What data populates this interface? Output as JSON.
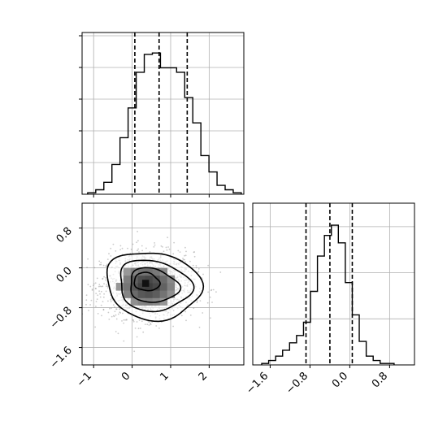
{
  "chart_data": [
    {
      "type": "histogram",
      "panel": "x-marginal",
      "x": [
        -1.05,
        -0.84,
        -0.63,
        -0.42,
        -0.21,
        0.0,
        0.21,
        0.42,
        0.63,
        0.84,
        1.05,
        1.26,
        1.47,
        1.68,
        1.89,
        2.1,
        2.31,
        2.52,
        2.73
      ],
      "values": [
        0.01,
        0.03,
        0.08,
        0.2,
        0.38,
        0.58,
        0.82,
        0.94,
        0.95,
        0.85,
        0.85,
        0.82,
        0.65,
        0.48,
        0.26,
        0.15,
        0.06,
        0.03,
        0.01
      ],
      "xlim": [
        -1.3,
        2.9
      ],
      "ylim": [
        0,
        1
      ],
      "quantiles": [
        0.07,
        0.7,
        1.43
      ],
      "grid": true
    },
    {
      "type": "scatter-density",
      "panel": "joint",
      "xticks": [
        -1,
        0,
        1,
        2
      ],
      "xtick_labels": [
        "−1",
        "0",
        "1",
        "2"
      ],
      "yticks": [
        -1.6,
        -0.8,
        0.0,
        0.8
      ],
      "ytick_labels": [
        "−1.6",
        "−0.8",
        "0.0",
        "0.8"
      ],
      "xlim": [
        -1.3,
        2.9
      ],
      "ylim": [
        -1.95,
        1.3
      ],
      "center": [
        0.4,
        -0.35
      ],
      "spread": [
        0.6,
        0.33
      ],
      "grid": true
    },
    {
      "type": "histogram",
      "panel": "y-marginal",
      "x": [
        -1.7,
        -1.56,
        -1.42,
        -1.28,
        -1.14,
        -1.0,
        -0.86,
        -0.72,
        -0.58,
        -0.44,
        -0.3,
        -0.16,
        -0.02,
        0.12,
        0.26,
        0.4,
        0.54,
        0.68,
        0.82
      ],
      "values": [
        0.01,
        0.03,
        0.06,
        0.1,
        0.15,
        0.2,
        0.29,
        0.5,
        0.74,
        0.88,
        0.95,
        0.83,
        0.56,
        0.34,
        0.16,
        0.06,
        0.03,
        0.01,
        0.01
      ],
      "xlim": [
        -1.95,
        1.3
      ],
      "ylim": [
        0,
        1
      ],
      "xticks": [
        -1.6,
        -0.8,
        0.0,
        0.8
      ],
      "xtick_labels": [
        "−1.6",
        "−0.8",
        "0.0",
        "0.8"
      ],
      "quantiles": [
        -0.88,
        -0.4,
        0.05
      ],
      "grid": true
    }
  ]
}
